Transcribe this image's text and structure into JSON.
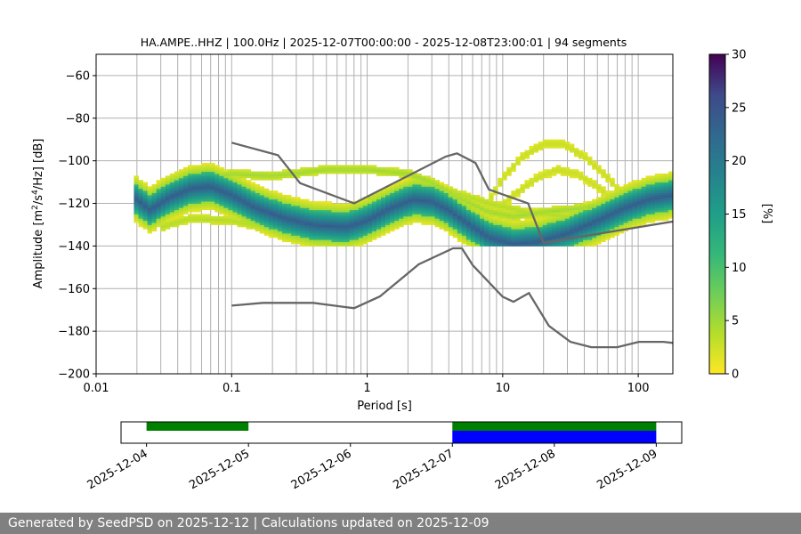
{
  "chart_data": [
    {
      "type": "heatmap",
      "title": "HA.AMPE..HHZ | 100.0Hz | 2025-12-07T00:00:00 - 2025-12-08T23:00:01 | 94 segments",
      "xlabel": "Period [s]",
      "ylabel_parts": [
        "Amplitude [m",
        "2",
        "/s",
        "4",
        "/Hz] [dB]"
      ],
      "x_scale": "log",
      "xlim": [
        0.01,
        180
      ],
      "ylim": [
        -200,
        -50
      ],
      "x_ticks": [
        0.01,
        0.1,
        1,
        10,
        100
      ],
      "x_tick_labels": [
        "0.01",
        "0.1",
        "1",
        "10",
        "100"
      ],
      "y_ticks": [
        -200,
        -180,
        -160,
        -140,
        -120,
        -100,
        -80,
        -60
      ],
      "y_tick_labels": [
        "−200",
        "−180",
        "−160",
        "−140",
        "−120",
        "−100",
        "−80",
        "−60"
      ],
      "grid": true,
      "colormap": "viridis_r",
      "colorbar": {
        "label": "[%]",
        "range": [
          0,
          30
        ],
        "ticks": [
          0,
          5,
          10,
          15,
          20,
          25,
          30
        ],
        "tick_labels": [
          "0",
          "5",
          "10",
          "15",
          "20",
          "25",
          "30"
        ]
      },
      "ridges": [
        {
          "name": "main",
          "peak": 24,
          "width": 7,
          "halo": 1.1,
          "halo_peak": 4,
          "points": [
            [
              0.019,
              -117
            ],
            [
              0.025,
              -123
            ],
            [
              0.035,
              -117
            ],
            [
              0.05,
              -113
            ],
            [
              0.07,
              -112
            ],
            [
              0.1,
              -116
            ],
            [
              0.15,
              -122
            ],
            [
              0.25,
              -127
            ],
            [
              0.4,
              -130
            ],
            [
              0.7,
              -131
            ],
            [
              1.0,
              -128
            ],
            [
              1.5,
              -122
            ],
            [
              2.2,
              -118
            ],
            [
              3.0,
              -119
            ],
            [
              4.0,
              -123
            ],
            [
              6.0,
              -131
            ],
            [
              8.0,
              -136
            ],
            [
              12.0,
              -139
            ],
            [
              18.0,
              -138
            ],
            [
              30.0,
              -134
            ],
            [
              50.0,
              -128
            ],
            [
              80.0,
              -122
            ],
            [
              120.0,
              -118
            ],
            [
              180.0,
              -116
            ]
          ]
        },
        {
          "name": "upper",
          "peak": 5,
          "width": 2,
          "halo": 0,
          "halo_peak": 0,
          "points": [
            [
              0.03,
              -122
            ],
            [
              0.05,
              -110
            ],
            [
              0.1,
              -106
            ],
            [
              0.2,
              -107
            ],
            [
              0.5,
              -104
            ],
            [
              1.0,
              -104
            ],
            [
              2.0,
              -106
            ],
            [
              3.0,
              -110
            ],
            [
              5.0,
              -118
            ],
            [
              8.0,
              -124
            ],
            [
              12.0,
              -126
            ],
            [
              20.0,
              -124
            ],
            [
              40.0,
              -122
            ],
            [
              80.0,
              -118
            ],
            [
              180.0,
              -112
            ]
          ]
        },
        {
          "name": "lower",
          "peak": 4,
          "width": 2,
          "halo": 0,
          "halo_peak": 0,
          "points": [
            [
              0.03,
              -131
            ],
            [
              0.05,
              -127
            ],
            [
              0.1,
              -128
            ],
            [
              0.2,
              -132
            ],
            [
              0.4,
              -134
            ],
            [
              0.8,
              -134
            ],
            [
              1.5,
              -127
            ],
            [
              3.0,
              -124
            ],
            [
              6.0,
              -130
            ],
            [
              10.0,
              -134
            ],
            [
              20.0,
              -134
            ],
            [
              40.0,
              -130
            ],
            [
              80.0,
              -124
            ],
            [
              180.0,
              -118
            ]
          ]
        },
        {
          "name": "arch",
          "peak": 3,
          "width": 2,
          "halo": 0,
          "halo_peak": 0,
          "points": [
            [
              8.0,
              -118
            ],
            [
              10.0,
              -108
            ],
            [
              14.0,
              -98
            ],
            [
              20.0,
              -92
            ],
            [
              28.0,
              -92
            ],
            [
              40.0,
              -98
            ],
            [
              60.0,
              -108
            ],
            [
              80.0,
              -118
            ],
            [
              100.0,
              -124
            ]
          ]
        },
        {
          "name": "arch2",
          "peak": 3,
          "width": 2,
          "halo": 0,
          "halo_peak": 0,
          "points": [
            [
              8.0,
              -126
            ],
            [
              12.0,
              -116
            ],
            [
              18.0,
              -108
            ],
            [
              25.0,
              -104
            ],
            [
              35.0,
              -106
            ],
            [
              50.0,
              -112
            ],
            [
              70.0,
              -120
            ],
            [
              90.0,
              -126
            ]
          ]
        },
        {
          "name": "mid",
          "peak": 4,
          "width": 2,
          "halo": 0,
          "halo_peak": 0,
          "points": [
            [
              1.0,
              -118
            ],
            [
              2.0,
              -112
            ],
            [
              4.0,
              -114
            ],
            [
              8.0,
              -120
            ],
            [
              15.0,
              -124
            ],
            [
              30.0,
              -126
            ],
            [
              60.0,
              -124
            ],
            [
              120.0,
              -118
            ]
          ]
        }
      ],
      "nhnm": {
        "points": [
          [
            0.1,
            -91.5
          ],
          [
            0.22,
            -97.4
          ],
          [
            0.32,
            -110.5
          ],
          [
            0.8,
            -120.0
          ],
          [
            3.8,
            -98.0
          ],
          [
            4.6,
            -96.5
          ],
          [
            6.3,
            -101.0
          ],
          [
            7.9,
            -113.5
          ],
          [
            15.4,
            -120.0
          ],
          [
            20.0,
            -138.5
          ],
          [
            180.0,
            -128.5
          ]
        ]
      },
      "nlnm": {
        "points": [
          [
            0.1,
            -168.0
          ],
          [
            0.17,
            -166.7
          ],
          [
            0.4,
            -166.7
          ],
          [
            0.8,
            -169.2
          ],
          [
            1.24,
            -163.7
          ],
          [
            2.4,
            -148.6
          ],
          [
            4.3,
            -141.1
          ],
          [
            5.0,
            -141.1
          ],
          [
            6.0,
            -149.0
          ],
          [
            10.0,
            -163.8
          ],
          [
            12.0,
            -166.2
          ],
          [
            15.6,
            -162.1
          ],
          [
            21.9,
            -177.5
          ],
          [
            31.6,
            -185.0
          ],
          [
            45.0,
            -187.5
          ],
          [
            70.0,
            -187.5
          ],
          [
            101.0,
            -185.0
          ],
          [
            154.0,
            -185.0
          ],
          [
            180.0,
            -185.5
          ]
        ]
      }
    },
    {
      "type": "timeline",
      "x_tick_labels": [
        "2025-12-04",
        "2025-12-05",
        "2025-12-06",
        "2025-12-07",
        "2025-12-08",
        "2025-12-09"
      ],
      "x_ticks_days": [
        4,
        5,
        6,
        7,
        8,
        9
      ],
      "xlim_days": [
        3.75,
        9.25
      ],
      "rows": [
        {
          "color": "#008000",
          "row": 0,
          "spans": [
            [
              4.0,
              5.0
            ],
            [
              7.0,
              9.0
            ]
          ]
        },
        {
          "color": "#0000ff",
          "row": 1,
          "spans": [
            [
              7.0,
              9.0
            ]
          ]
        }
      ]
    }
  ],
  "footer": {
    "text": "Generated by SeedPSD on 2025-12-12 | Calculations updated on 2025-12-09"
  }
}
